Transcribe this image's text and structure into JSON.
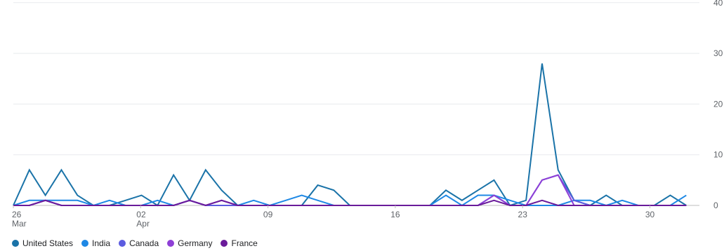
{
  "chart_data": {
    "type": "line",
    "x_ticks": [
      {
        "day": 0,
        "label": "26",
        "sublabel": "Mar"
      },
      {
        "day": 7,
        "label": "02",
        "sublabel": "Apr"
      },
      {
        "day": 14,
        "label": "09",
        "sublabel": ""
      },
      {
        "day": 21,
        "label": "16",
        "sublabel": ""
      },
      {
        "day": 28,
        "label": "23",
        "sublabel": ""
      },
      {
        "day": 35,
        "label": "30",
        "sublabel": ""
      }
    ],
    "y_ticks": [
      0,
      10,
      20,
      30,
      40
    ],
    "ylim": [
      0,
      40
    ],
    "xlim": [
      0,
      37
    ],
    "grid": true,
    "legend_position": "bottom-left",
    "series": [
      {
        "name": "United States",
        "color": "#1a73a8",
        "values": [
          0,
          7,
          2,
          7,
          2,
          0,
          0,
          1,
          2,
          0,
          6,
          1,
          7,
          3,
          0,
          0,
          0,
          0,
          0,
          4,
          3,
          0,
          0,
          0,
          0,
          0,
          0,
          3,
          1,
          3,
          5,
          0,
          1,
          28,
          7,
          1,
          0,
          2,
          0,
          0,
          0,
          2,
          0
        ]
      },
      {
        "name": "India",
        "color": "#1e88e5",
        "values": [
          0,
          1,
          1,
          1,
          1,
          0,
          1,
          0,
          0,
          1,
          0,
          1,
          0,
          0,
          0,
          1,
          0,
          1,
          2,
          1,
          0,
          0,
          0,
          0,
          0,
          0,
          0,
          2,
          0,
          2,
          2,
          1,
          0,
          0,
          0,
          1,
          1,
          0,
          1,
          0,
          0,
          0,
          2
        ]
      },
      {
        "name": "Canada",
        "color": "#5c5ce0",
        "values": [
          0,
          0,
          1,
          0,
          0,
          0,
          0,
          0,
          0,
          0,
          0,
          1,
          0,
          0,
          0,
          0,
          0,
          0,
          0,
          0,
          0,
          0,
          0,
          0,
          0,
          0,
          0,
          0,
          0,
          0,
          2,
          0,
          0,
          5,
          6,
          1,
          0,
          0,
          0,
          0,
          0,
          0,
          0
        ]
      },
      {
        "name": "Germany",
        "color": "#8e3fd6",
        "values": [
          0,
          0,
          1,
          0,
          0,
          0,
          0,
          0,
          0,
          0,
          0,
          1,
          0,
          1,
          0,
          0,
          0,
          0,
          0,
          0,
          0,
          0,
          0,
          0,
          0,
          0,
          0,
          0,
          0,
          0,
          2,
          0,
          0,
          5,
          6,
          0,
          0,
          0,
          0,
          0,
          0,
          0,
          0
        ]
      },
      {
        "name": "France",
        "color": "#6a1b9a",
        "values": [
          0,
          0,
          1,
          0,
          0,
          0,
          0,
          0,
          0,
          0,
          0,
          1,
          0,
          1,
          0,
          0,
          0,
          0,
          0,
          0,
          0,
          0,
          0,
          0,
          0,
          0,
          0,
          0,
          0,
          0,
          1,
          0,
          0,
          1,
          0,
          0,
          0,
          0,
          0,
          0,
          0,
          0,
          0
        ]
      }
    ]
  }
}
